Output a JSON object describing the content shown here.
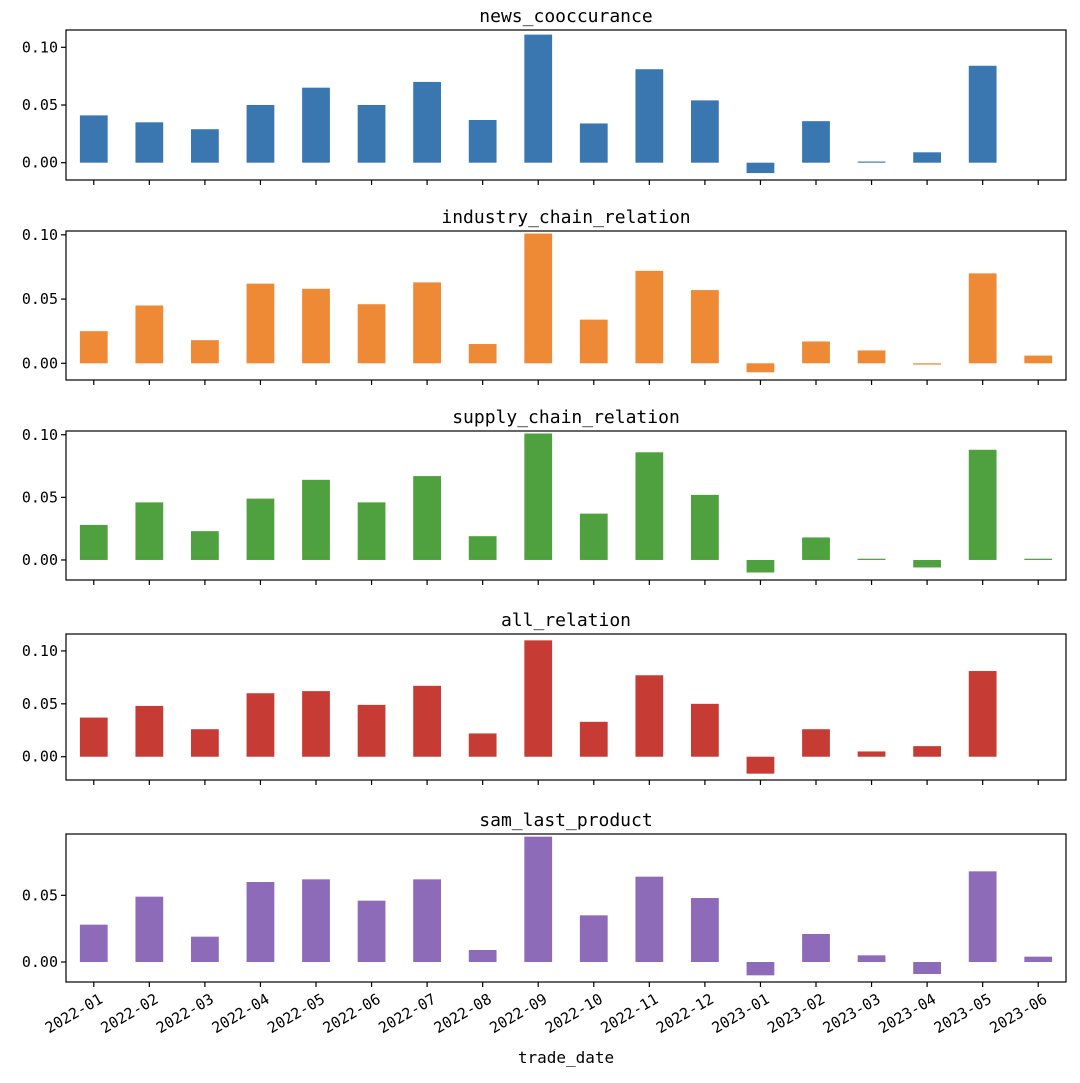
{
  "chart_data": [
    {
      "type": "bar",
      "title": "news_cooccurance",
      "color": "#3a76b0",
      "categories": [
        "2022-01",
        "2022-02",
        "2022-03",
        "2022-04",
        "2022-05",
        "2022-06",
        "2022-07",
        "2022-08",
        "2022-09",
        "2022-10",
        "2022-11",
        "2022-12",
        "2023-01",
        "2023-02",
        "2023-03",
        "2023-04",
        "2023-05",
        "2023-06"
      ],
      "values": [
        0.041,
        0.035,
        0.029,
        0.05,
        0.065,
        0.05,
        0.07,
        0.037,
        0.111,
        0.034,
        0.081,
        0.054,
        -0.009,
        0.036,
        0.001,
        0.009,
        0.084,
        0.0
      ],
      "ylim": [
        -0.015,
        0.115
      ],
      "yticks": [
        0.0,
        0.05,
        0.1
      ],
      "ytick_labels": [
        "0.00",
        "0.05",
        "0.10"
      ]
    },
    {
      "type": "bar",
      "title": "industry_chain_relation",
      "color": "#ee8935",
      "categories": [
        "2022-01",
        "2022-02",
        "2022-03",
        "2022-04",
        "2022-05",
        "2022-06",
        "2022-07",
        "2022-08",
        "2022-09",
        "2022-10",
        "2022-11",
        "2022-12",
        "2023-01",
        "2023-02",
        "2023-03",
        "2023-04",
        "2023-05",
        "2023-06"
      ],
      "values": [
        0.025,
        0.045,
        0.018,
        0.062,
        0.058,
        0.046,
        0.063,
        0.015,
        0.101,
        0.034,
        0.072,
        0.057,
        -0.007,
        0.017,
        0.01,
        -0.001,
        0.07,
        0.006
      ],
      "ylim": [
        -0.013,
        0.103
      ],
      "yticks": [
        0.0,
        0.05,
        0.1
      ],
      "ytick_labels": [
        "0.00",
        "0.05",
        "0.10"
      ]
    },
    {
      "type": "bar",
      "title": "supply_chain_relation",
      "color": "#4fa13f",
      "categories": [
        "2022-01",
        "2022-02",
        "2022-03",
        "2022-04",
        "2022-05",
        "2022-06",
        "2022-07",
        "2022-08",
        "2022-09",
        "2022-10",
        "2022-11",
        "2022-12",
        "2023-01",
        "2023-02",
        "2023-03",
        "2023-04",
        "2023-05",
        "2023-06"
      ],
      "values": [
        0.028,
        0.046,
        0.023,
        0.049,
        0.064,
        0.046,
        0.067,
        0.019,
        0.101,
        0.037,
        0.086,
        0.052,
        -0.01,
        0.018,
        0.001,
        -0.006,
        0.088,
        0.001
      ],
      "ylim": [
        -0.016,
        0.103
      ],
      "yticks": [
        0.0,
        0.05,
        0.1
      ],
      "ytick_labels": [
        "0.00",
        "0.05",
        "0.10"
      ]
    },
    {
      "type": "bar",
      "title": "all_relation",
      "color": "#c73b35",
      "categories": [
        "2022-01",
        "2022-02",
        "2022-03",
        "2022-04",
        "2022-05",
        "2022-06",
        "2022-07",
        "2022-08",
        "2022-09",
        "2022-10",
        "2022-11",
        "2022-12",
        "2023-01",
        "2023-02",
        "2023-03",
        "2023-04",
        "2023-05",
        "2023-06"
      ],
      "values": [
        0.037,
        0.048,
        0.026,
        0.06,
        0.062,
        0.049,
        0.067,
        0.022,
        0.11,
        0.033,
        0.077,
        0.05,
        -0.016,
        0.026,
        0.005,
        0.01,
        0.081,
        0.0
      ],
      "ylim": [
        -0.022,
        0.116
      ],
      "yticks": [
        0.0,
        0.05,
        0.1
      ],
      "ytick_labels": [
        "0.00",
        "0.05",
        "0.10"
      ]
    },
    {
      "type": "bar",
      "title": "sam_last_product",
      "color": "#8e6bb9",
      "categories": [
        "2022-01",
        "2022-02",
        "2022-03",
        "2022-04",
        "2022-05",
        "2022-06",
        "2022-07",
        "2022-08",
        "2022-09",
        "2022-10",
        "2022-11",
        "2022-12",
        "2023-01",
        "2023-02",
        "2023-03",
        "2023-04",
        "2023-05",
        "2023-06"
      ],
      "values": [
        0.028,
        0.049,
        0.019,
        0.06,
        0.062,
        0.046,
        0.062,
        0.009,
        0.094,
        0.035,
        0.064,
        0.048,
        -0.01,
        0.021,
        0.005,
        -0.009,
        0.068,
        0.004
      ],
      "ylim": [
        -0.015,
        0.096
      ],
      "yticks": [
        0.0,
        0.05
      ],
      "ytick_labels": [
        "0.00",
        "0.05"
      ]
    }
  ],
  "xlabel": "trade_date",
  "x_tick_labels": [
    "2022-01",
    "2022-02",
    "2022-03",
    "2022-04",
    "2022-05",
    "2022-06",
    "2022-07",
    "2022-08",
    "2022-09",
    "2022-10",
    "2022-11",
    "2022-12",
    "2023-01",
    "2023-02",
    "2023-03",
    "2023-04",
    "2023-05",
    "2023-06"
  ]
}
